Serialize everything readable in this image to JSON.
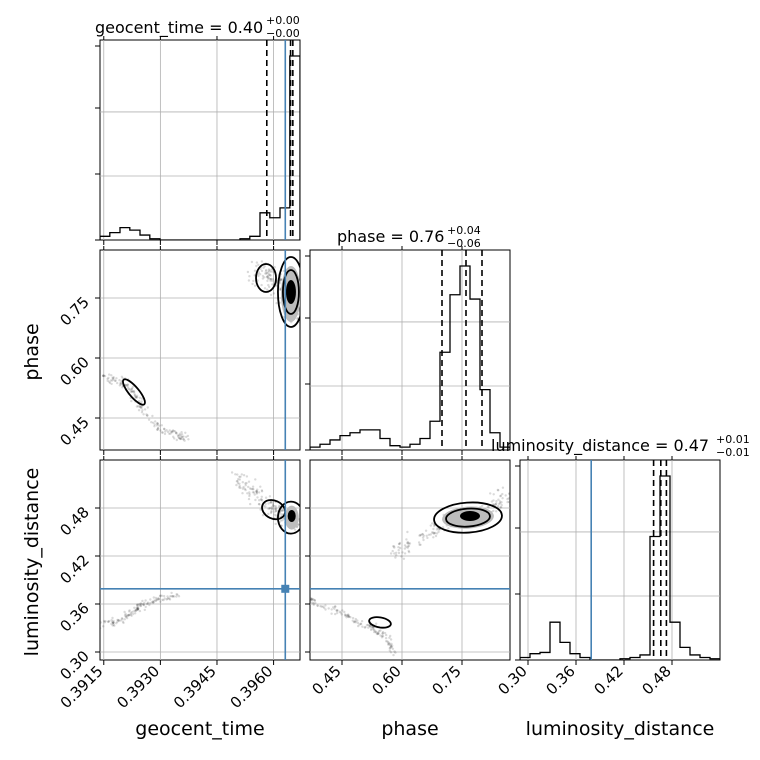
{
  "chart_data": {
    "type": "corner",
    "parameters": [
      "geocent_time",
      "phase",
      "luminosity_distance"
    ],
    "axis_labels": {
      "geocent_time": "geocent_time",
      "phase": "phase",
      "luminosity_distance": "luminosity_distance"
    },
    "ranges": {
      "geocent_time": [
        0.3914,
        0.3967
      ],
      "phase": [
        0.37,
        0.87
      ],
      "luminosity_distance": [
        0.29,
        0.54
      ]
    },
    "ticks": {
      "geocent_time": {
        "values": [
          0.3915,
          0.393,
          0.3945,
          0.396
        ],
        "labels": [
          "0.3915",
          "0.3930",
          "0.3945",
          "0.3960"
        ]
      },
      "phase": {
        "values": [
          0.45,
          0.6,
          0.75
        ],
        "labels": [
          "0.45",
          "0.60",
          "0.75"
        ]
      },
      "luminosity_distance": {
        "values": [
          0.3,
          0.36,
          0.42,
          0.48
        ],
        "labels": [
          "0.30",
          "0.36",
          "0.42",
          "0.48"
        ]
      }
    },
    "truth": {
      "geocent_time": 0.39631,
      "phase": null,
      "luminosity_distance": 0.379
    },
    "titles": [
      {
        "param": "geocent_time",
        "text": "geocent_time = 0.40",
        "plus": "+0.00",
        "minus": "−0.00"
      },
      {
        "param": "phase",
        "text": "phase = 0.76",
        "plus": "+0.04",
        "minus": "−0.06"
      },
      {
        "param": "luminosity_distance",
        "text": "luminosity_distance = 0.47",
        "plus": "+0.01",
        "minus": "−0.01"
      }
    ],
    "quantiles": {
      "geocent_time": [
        0.39582,
        0.39645,
        0.39651
      ],
      "phase": [
        0.7,
        0.76,
        0.8
      ],
      "luminosity_distance": [
        0.457,
        0.466,
        0.473
      ]
    },
    "histograms": {
      "geocent_time": {
        "edges": [
          0.3914,
          0.39166,
          0.39193,
          0.39219,
          0.39246,
          0.39272,
          0.39299,
          0.39325,
          0.39352,
          0.39378,
          0.39405,
          0.39431,
          0.39458,
          0.39484,
          0.39511,
          0.39537,
          0.39564,
          0.3959,
          0.39617,
          0.39643,
          0.3967
        ],
        "counts": [
          3,
          6,
          10,
          8,
          4,
          1,
          0,
          0,
          0,
          0,
          0,
          0,
          0,
          0,
          1,
          3,
          22,
          18,
          26,
          149
        ]
      },
      "phase": {
        "edges": [
          0.37,
          0.395,
          0.42,
          0.445,
          0.47,
          0.495,
          0.52,
          0.545,
          0.57,
          0.595,
          0.62,
          0.645,
          0.67,
          0.695,
          0.72,
          0.745,
          0.77,
          0.795,
          0.82,
          0.845,
          0.87
        ],
        "counts": [
          2,
          4,
          7,
          10,
          12,
          14,
          14,
          8,
          3,
          2,
          4,
          8,
          20,
          68,
          108,
          128,
          105,
          42,
          12,
          2
        ]
      },
      "luminosity_distance": {
        "edges": [
          0.29,
          0.3025,
          0.315,
          0.3275,
          0.34,
          0.3525,
          0.365,
          0.3775,
          0.39,
          0.4025,
          0.415,
          0.4275,
          0.44,
          0.4525,
          0.465,
          0.4775,
          0.49,
          0.5025,
          0.515,
          0.5275,
          0.54
        ],
        "counts": [
          2,
          5,
          6,
          30,
          14,
          5,
          2,
          0,
          0,
          0,
          1,
          2,
          4,
          98,
          146,
          30,
          10,
          4,
          2,
          1
        ]
      }
    },
    "grid": true
  }
}
